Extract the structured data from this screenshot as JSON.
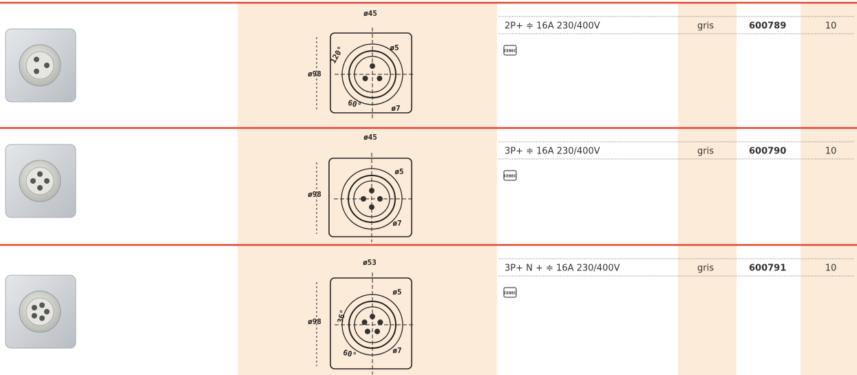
{
  "rows": [
    {
      "spec": "2P+ ≑ 16A  230/400V",
      "color": "gris",
      "ref": "600789",
      "qty": "10",
      "logo": "CEBEC",
      "drawing_labels": [
        "ø45",
        "120°",
        "ø5",
        "ø98",
        "ø7",
        "60°"
      ]
    },
    {
      "spec": "3P+ ≑ 16A  230/400V",
      "color": "gris",
      "ref": "600790",
      "qty": "10",
      "logo": "CEBEC",
      "drawing_labels": [
        "ø45",
        "ø5",
        "ø98",
        "ø7"
      ]
    },
    {
      "spec": "3P+ N + ≑ 16A  230/400V",
      "color": "gris",
      "ref": "600791",
      "qty": "10",
      "logo": "CEBEC",
      "drawing_labels": [
        "ø53",
        "ø5",
        "36°",
        "ø98",
        "60°",
        "ø7"
      ]
    }
  ]
}
